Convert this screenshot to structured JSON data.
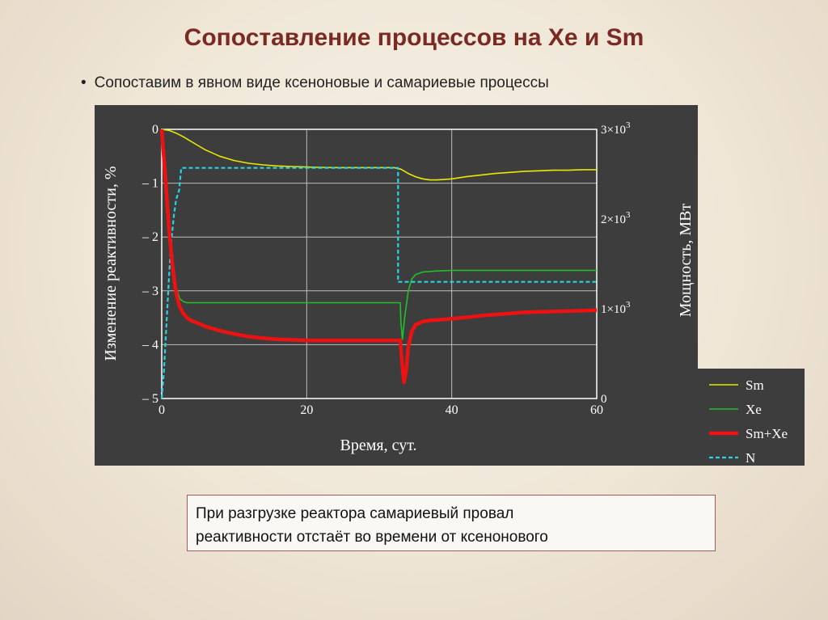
{
  "slide": {
    "title": "Сопоставление процессов на Xe и Sm",
    "bullet": "Сопоставим в явном виде ксеноновые и самариевые процессы",
    "note_line1": "При разгрузке реактора самариевый провал",
    "note_line2": "реактивности отстаёт во времени от ксенонового"
  },
  "chart_data": {
    "type": "line",
    "xlabel": "Время, сут.",
    "ylabel": "Изменение реактивности, %",
    "y2label": "Мощность, МВт",
    "xlim": [
      0,
      60
    ],
    "ylim": [
      -5,
      0
    ],
    "y2lim": [
      0,
      3000
    ],
    "x_ticks": [
      "0",
      "20",
      "40",
      "60"
    ],
    "y_ticks": [
      "0",
      "– 1",
      "– 2",
      "– 3",
      "– 4",
      "– 5"
    ],
    "y2_ticks": [
      {
        "value": 0,
        "mant": "0",
        "exp": ""
      },
      {
        "value": 1000,
        "mant": "1×10",
        "exp": "3"
      },
      {
        "value": 2000,
        "mant": "2×10",
        "exp": "3"
      },
      {
        "value": 3000,
        "mant": "3×10",
        "exp": "3"
      }
    ],
    "grid": true,
    "legend_position": "right",
    "colors": {
      "background": "#3d3d3d",
      "plot_border": "#ffffff",
      "grid": "#bdbdbd",
      "text": "#ffffff",
      "Sm": "#e8e800",
      "Xe": "#22c02a",
      "SmXe": "#ee1111",
      "N": "#27d4e4"
    },
    "series": [
      {
        "name": "Sm",
        "axis": "left",
        "key": "Sm",
        "x": [
          0,
          1,
          2,
          3,
          4,
          5,
          6,
          7,
          8,
          10,
          12,
          14,
          16,
          18,
          20,
          22,
          24,
          26,
          28,
          30,
          32,
          33,
          34,
          35,
          36,
          37,
          38,
          40,
          42,
          44,
          46,
          48,
          50,
          52,
          54,
          56,
          58,
          60
        ],
        "y": [
          0,
          -0.02,
          -0.07,
          -0.14,
          -0.22,
          -0.3,
          -0.38,
          -0.44,
          -0.5,
          -0.58,
          -0.63,
          -0.66,
          -0.68,
          -0.69,
          -0.7,
          -0.705,
          -0.71,
          -0.71,
          -0.71,
          -0.71,
          -0.71,
          -0.74,
          -0.82,
          -0.88,
          -0.92,
          -0.94,
          -0.94,
          -0.92,
          -0.88,
          -0.85,
          -0.82,
          -0.8,
          -0.78,
          -0.77,
          -0.76,
          -0.76,
          -0.75,
          -0.75
        ]
      },
      {
        "name": "Xe",
        "axis": "left",
        "key": "Xe",
        "x": [
          0,
          0.5,
          1,
          1.5,
          2,
          2.5,
          3,
          3.5,
          4,
          5,
          10,
          20,
          30,
          32.9,
          33.0,
          33.2,
          33.5,
          34,
          34.5,
          35,
          36,
          38,
          40,
          50,
          60
        ],
        "y": [
          0,
          -0.9,
          -1.8,
          -2.5,
          -2.95,
          -3.15,
          -3.2,
          -3.22,
          -3.22,
          -3.22,
          -3.22,
          -3.22,
          -3.22,
          -3.22,
          -3.6,
          -3.9,
          -3.5,
          -3.0,
          -2.78,
          -2.7,
          -2.65,
          -2.63,
          -2.62,
          -2.62,
          -2.62
        ]
      },
      {
        "name": "Sm+Xe",
        "axis": "left",
        "key": "SmXe",
        "x": [
          0,
          0.5,
          1,
          1.5,
          2,
          2.5,
          3,
          3.5,
          4,
          5,
          6,
          8,
          10,
          12,
          14,
          16,
          18,
          20,
          25,
          30,
          32.9,
          33.0,
          33.2,
          33.4,
          33.7,
          34,
          34.5,
          35,
          36,
          37,
          38,
          40,
          45,
          50,
          55,
          60
        ],
        "y": [
          0,
          -0.9,
          -1.85,
          -2.55,
          -3.05,
          -3.3,
          -3.42,
          -3.5,
          -3.55,
          -3.6,
          -3.66,
          -3.74,
          -3.8,
          -3.85,
          -3.88,
          -3.9,
          -3.91,
          -3.92,
          -3.92,
          -3.92,
          -3.92,
          -4.1,
          -4.4,
          -4.7,
          -4.5,
          -4.05,
          -3.75,
          -3.63,
          -3.57,
          -3.55,
          -3.54,
          -3.52,
          -3.45,
          -3.4,
          -3.38,
          -3.36
        ]
      },
      {
        "name": "N",
        "axis": "right",
        "key": "N",
        "x": [
          0,
          0.3,
          0.7,
          1,
          1.3,
          1.7,
          2,
          2.4,
          2.7,
          3,
          32.6,
          32.6,
          60
        ],
        "y": [
          0,
          300,
          900,
          1350,
          1750,
          2050,
          2220,
          2320,
          2570,
          2570,
          2570,
          1300,
          1300
        ]
      }
    ]
  }
}
